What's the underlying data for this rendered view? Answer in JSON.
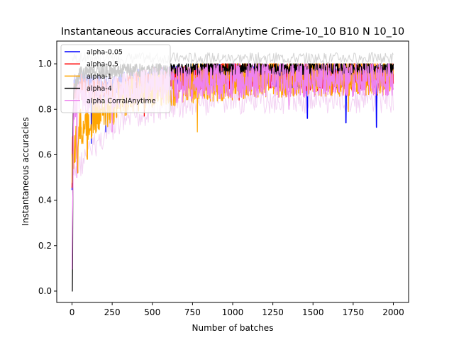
{
  "chart_data": {
    "type": "line",
    "title": "Instantaneous accuracies CorralAnytime Crime-10_10 B10 N 10_10",
    "xlabel": "Number of batches",
    "ylabel": "Instantaneous accuracies",
    "xlim": [
      -95,
      2095
    ],
    "ylim": [
      -0.05,
      1.1
    ],
    "xticks": [
      0,
      250,
      500,
      750,
      1000,
      1250,
      1500,
      1750,
      2000
    ],
    "xtick_labels": [
      "0",
      "250",
      "500",
      "750",
      "1000",
      "1250",
      "1500",
      "1750",
      "2000"
    ],
    "yticks": [
      0.0,
      0.2,
      0.4,
      0.6,
      0.8,
      1.0
    ],
    "ytick_labels": [
      "0.0",
      "0.2",
      "0.4",
      "0.6",
      "0.8",
      "1.0"
    ],
    "grid": false,
    "legend_position": "top-left",
    "x_range": [
      0,
      2000
    ],
    "series": [
      {
        "name": "alpha-0.05",
        "color": "#0000ff",
        "anchors": [
          [
            0,
            0.45
          ],
          [
            10,
            0.9
          ],
          [
            50,
            0.92
          ],
          [
            200,
            0.9
          ],
          [
            500,
            0.94
          ],
          [
            1000,
            0.95
          ],
          [
            1500,
            0.94
          ],
          [
            2000,
            0.95
          ]
        ],
        "noise": 0.05,
        "dips": [
          [
            120,
            0.65
          ],
          [
            210,
            0.7
          ],
          [
            1465,
            0.76
          ],
          [
            1895,
            0.72
          ],
          [
            1705,
            0.74
          ]
        ]
      },
      {
        "name": "alpha-0.5",
        "color": "#ff0000",
        "anchors": [
          [
            0,
            0.5
          ],
          [
            10,
            0.88
          ],
          [
            50,
            0.9
          ],
          [
            200,
            0.88
          ],
          [
            500,
            0.93
          ],
          [
            1000,
            0.95
          ],
          [
            1500,
            0.94
          ],
          [
            2000,
            0.95
          ]
        ],
        "noise": 0.06,
        "dips": [
          [
            450,
            0.77
          ],
          [
            1040,
            0.84
          ],
          [
            1620,
            0.87
          ]
        ]
      },
      {
        "name": "alpha-1",
        "color": "#ffa500",
        "anchors": [
          [
            0,
            0.55
          ],
          [
            15,
            0.62
          ],
          [
            50,
            0.72
          ],
          [
            150,
            0.78
          ],
          [
            400,
            0.88
          ],
          [
            800,
            0.92
          ],
          [
            1200,
            0.94
          ],
          [
            2000,
            0.95
          ]
        ],
        "noise": 0.09,
        "dips": [
          [
            35,
            0.52
          ],
          [
            95,
            0.58
          ],
          [
            780,
            0.7
          ],
          [
            1720,
            0.79
          ]
        ]
      },
      {
        "name": "alpha-4",
        "color": "#000000",
        "anchors": [
          [
            0,
            0.0
          ],
          [
            3,
            0.5
          ],
          [
            10,
            0.88
          ],
          [
            50,
            0.96
          ],
          [
            300,
            0.97
          ],
          [
            1000,
            0.98
          ],
          [
            2000,
            0.98
          ]
        ],
        "noise": 0.03,
        "dips": [
          [
            1,
            0.0
          ],
          [
            4,
            0.16
          ]
        ]
      },
      {
        "name": "alpha CorralAnytime",
        "color": "#ee82ee",
        "anchors": [
          [
            0,
            0.15
          ],
          [
            10,
            0.8
          ],
          [
            50,
            0.85
          ],
          [
            200,
            0.87
          ],
          [
            500,
            0.9
          ],
          [
            1000,
            0.93
          ],
          [
            1500,
            0.93
          ],
          [
            2000,
            0.94
          ]
        ],
        "noise": 0.08,
        "dips": [
          [
            30,
            0.5
          ],
          [
            250,
            0.7
          ],
          [
            1350,
            0.8
          ]
        ]
      }
    ],
    "band": {
      "color_low": "#f0c8f0",
      "color_high": "#c8c8c8",
      "low": 0.55,
      "high": 1.05
    }
  }
}
